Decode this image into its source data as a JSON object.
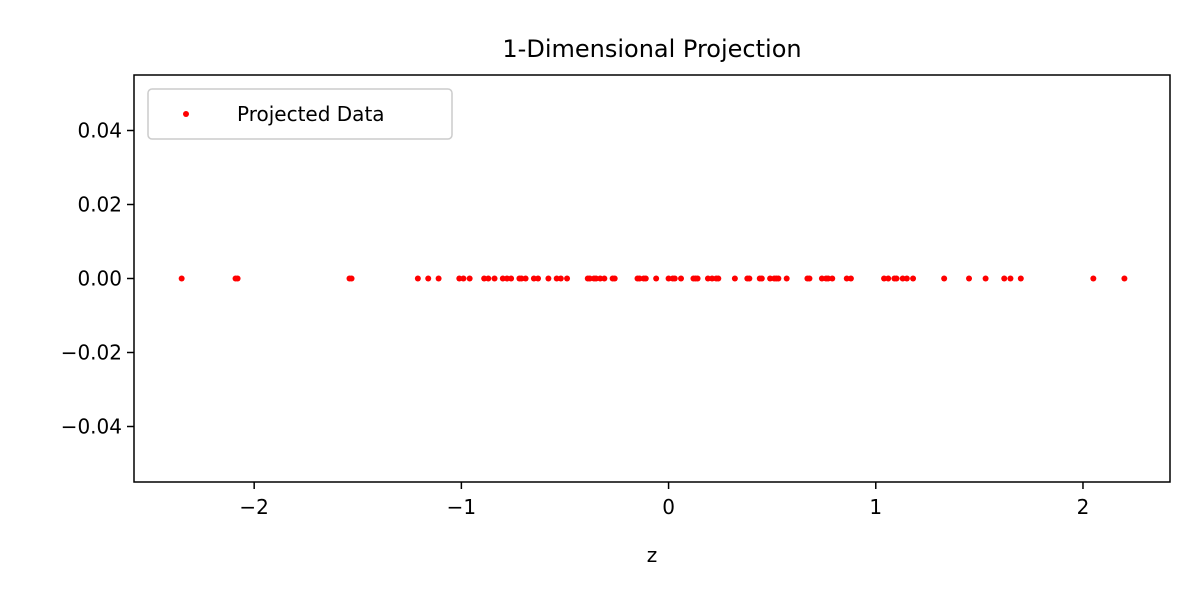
{
  "chart_data": {
    "type": "scatter",
    "title": "1-Dimensional Projection",
    "xlabel": "z",
    "ylabel": "",
    "xlim": [
      -2.58,
      2.42
    ],
    "ylim": [
      -0.055,
      0.055
    ],
    "xticks": [
      -2,
      -1,
      0,
      1,
      2
    ],
    "xtick_labels": [
      "−2",
      "−1",
      "0",
      "1",
      "2"
    ],
    "yticks": [
      0.04,
      0.02,
      0.0,
      -0.02,
      -0.04
    ],
    "ytick_labels": [
      "0.04",
      "0.02",
      "0.00",
      "−0.02",
      "−0.04"
    ],
    "grid": false,
    "legend_position": "top-left",
    "series": [
      {
        "name": "Projected Data",
        "color": "#ff0000",
        "marker": "dot",
        "x": [
          -2.35,
          -2.09,
          -2.08,
          -1.54,
          -1.53,
          -1.21,
          -1.16,
          -1.11,
          -1.01,
          -0.99,
          -0.96,
          -0.89,
          -0.87,
          -0.84,
          -0.8,
          -0.78,
          -0.76,
          -0.72,
          -0.71,
          -0.69,
          -0.65,
          -0.63,
          -0.58,
          -0.54,
          -0.52,
          -0.49,
          -0.39,
          -0.38,
          -0.36,
          -0.35,
          -0.33,
          -0.31,
          -0.27,
          -0.26,
          -0.15,
          -0.14,
          -0.12,
          -0.11,
          -0.06,
          0.0,
          0.02,
          0.03,
          0.06,
          0.12,
          0.13,
          0.14,
          0.19,
          0.21,
          0.23,
          0.24,
          0.32,
          0.38,
          0.39,
          0.44,
          0.45,
          0.49,
          0.51,
          0.52,
          0.53,
          0.57,
          0.67,
          0.68,
          0.74,
          0.76,
          0.77,
          0.79,
          0.86,
          0.88,
          1.04,
          1.06,
          1.09,
          1.1,
          1.13,
          1.15,
          1.18,
          1.33,
          1.45,
          1.53,
          1.62,
          1.65,
          1.7,
          2.05,
          2.2
        ],
        "y": [
          0,
          0,
          0,
          0,
          0,
          0,
          0,
          0,
          0,
          0,
          0,
          0,
          0,
          0,
          0,
          0,
          0,
          0,
          0,
          0,
          0,
          0,
          0,
          0,
          0,
          0,
          0,
          0,
          0,
          0,
          0,
          0,
          0,
          0,
          0,
          0,
          0,
          0,
          0,
          0,
          0,
          0,
          0,
          0,
          0,
          0,
          0,
          0,
          0,
          0,
          0,
          0,
          0,
          0,
          0,
          0,
          0,
          0,
          0,
          0,
          0,
          0,
          0,
          0,
          0,
          0,
          0,
          0,
          0,
          0,
          0,
          0,
          0,
          0,
          0,
          0,
          0,
          0,
          0,
          0,
          0,
          0,
          0
        ]
      }
    ]
  }
}
